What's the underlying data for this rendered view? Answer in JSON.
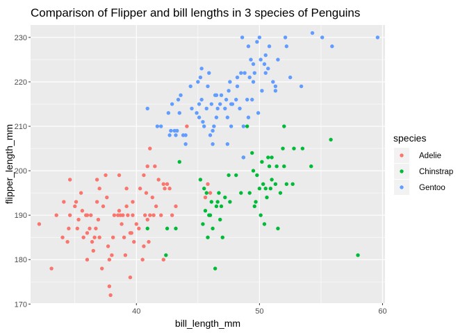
{
  "chart_data": {
    "type": "scatter",
    "title": "Comparison of Flipper and bill lengths in 3 species of Penguins",
    "xlabel": "bill_length_mm",
    "ylabel": "flipper_length_mm",
    "xlim": [
      31.4,
      60.2
    ],
    "ylim": [
      170.2,
      232.8
    ],
    "xticks": [
      40,
      50,
      60
    ],
    "yticks": [
      170,
      180,
      190,
      200,
      210,
      220,
      230
    ],
    "grid": true,
    "legend_title": "species",
    "legend_placement": "right",
    "series": [
      {
        "name": "Adelie",
        "color": "#F8766D",
        "points": [
          [
            32.1,
            188
          ],
          [
            33.1,
            178
          ],
          [
            33.5,
            190
          ],
          [
            34.0,
            185
          ],
          [
            34.1,
            193
          ],
          [
            34.4,
            184
          ],
          [
            34.5,
            187
          ],
          [
            34.6,
            190
          ],
          [
            34.6,
            198
          ],
          [
            35.0,
            192
          ],
          [
            35.1,
            193
          ],
          [
            35.2,
            187
          ],
          [
            35.3,
            189
          ],
          [
            35.5,
            195
          ],
          [
            35.6,
            191
          ],
          [
            35.7,
            185
          ],
          [
            35.9,
            190
          ],
          [
            36.0,
            180
          ],
          [
            36.0,
            186
          ],
          [
            36.0,
            190
          ],
          [
            36.2,
            187
          ],
          [
            36.3,
            190
          ],
          [
            36.4,
            184
          ],
          [
            36.5,
            182
          ],
          [
            36.6,
            185
          ],
          [
            36.7,
            187
          ],
          [
            36.8,
            193
          ],
          [
            36.9,
            189
          ],
          [
            37.0,
            185
          ],
          [
            37.2,
            178
          ],
          [
            37.3,
            192
          ],
          [
            37.5,
            199
          ],
          [
            37.6,
            194
          ],
          [
            37.7,
            183
          ],
          [
            37.8,
            174
          ],
          [
            37.8,
            180
          ],
          [
            37.9,
            172
          ],
          [
            38.0,
            181
          ],
          [
            38.1,
            185
          ],
          [
            38.2,
            190
          ],
          [
            38.5,
            190
          ],
          [
            38.6,
            191
          ],
          [
            38.7,
            190
          ],
          [
            38.8,
            188
          ],
          [
            38.9,
            190
          ],
          [
            39.0,
            185
          ],
          [
            39.1,
            181
          ],
          [
            39.2,
            196
          ],
          [
            39.3,
            190
          ],
          [
            39.5,
            186
          ],
          [
            39.6,
            186
          ],
          [
            39.7,
            193
          ],
          [
            39.8,
            184
          ],
          [
            40.0,
            188
          ],
          [
            40.2,
            187
          ],
          [
            40.3,
            196
          ],
          [
            40.5,
            180
          ],
          [
            40.6,
            183
          ],
          [
            40.7,
            190
          ],
          [
            40.8,
            195
          ],
          [
            40.9,
            189
          ],
          [
            41.0,
            184
          ],
          [
            41.1,
            190
          ],
          [
            41.3,
            194
          ],
          [
            41.4,
            190
          ],
          [
            41.5,
            201
          ],
          [
            41.6,
            192
          ],
          [
            41.8,
            198
          ],
          [
            42.0,
            190
          ],
          [
            42.2,
            180
          ],
          [
            42.3,
            196
          ],
          [
            42.5,
            197
          ],
          [
            42.7,
            196
          ],
          [
            42.9,
            190
          ],
          [
            43.2,
            192
          ],
          [
            44.1,
            210
          ],
          [
            45.6,
            194
          ],
          [
            45.8,
            197
          ],
          [
            46.0,
            195
          ],
          [
            39.5,
            176
          ],
          [
            38.6,
            199
          ],
          [
            37.0,
            196
          ],
          [
            36.8,
            198
          ],
          [
            41.1,
            205
          ],
          [
            40.9,
            201
          ],
          [
            42.2,
            197
          ],
          [
            39.7,
            190
          ],
          [
            40.6,
            199
          ],
          [
            39.2,
            192
          ]
        ]
      },
      {
        "name": "Chinstrap",
        "color": "#00BA38",
        "points": [
          [
            40.9,
            187
          ],
          [
            42.4,
            181
          ],
          [
            42.5,
            187
          ],
          [
            43.2,
            187
          ],
          [
            43.5,
            202
          ],
          [
            45.2,
            198
          ],
          [
            45.4,
            188
          ],
          [
            45.5,
            196
          ],
          [
            45.6,
            191
          ],
          [
            45.7,
            195
          ],
          [
            45.9,
            190
          ],
          [
            46.1,
            193
          ],
          [
            46.2,
            187
          ],
          [
            46.4,
            178
          ],
          [
            46.5,
            192
          ],
          [
            46.6,
            193
          ],
          [
            46.7,
            195
          ],
          [
            46.8,
            189
          ],
          [
            46.9,
            192
          ],
          [
            47.0,
            185
          ],
          [
            47.5,
            199
          ],
          [
            47.6,
            193
          ],
          [
            48.1,
            199
          ],
          [
            48.5,
            195
          ],
          [
            49.0,
            210
          ],
          [
            49.2,
            195
          ],
          [
            49.5,
            200
          ],
          [
            49.7,
            193
          ],
          [
            49.8,
            199
          ],
          [
            50.0,
            196
          ],
          [
            50.1,
            190
          ],
          [
            50.3,
            197
          ],
          [
            50.5,
            196
          ],
          [
            50.6,
            194
          ],
          [
            50.7,
            203
          ],
          [
            50.8,
            201
          ],
          [
            50.9,
            196
          ],
          [
            51.0,
            203
          ],
          [
            51.3,
            197
          ],
          [
            51.4,
            201
          ],
          [
            51.5,
            187
          ],
          [
            51.7,
            195
          ],
          [
            51.9,
            205
          ],
          [
            52.0,
            210
          ],
          [
            52.2,
            197
          ],
          [
            52.7,
            197
          ],
          [
            52.8,
            205
          ],
          [
            53.5,
            205
          ],
          [
            54.2,
            201
          ],
          [
            55.8,
            207
          ],
          [
            58.0,
            181
          ],
          [
            49.6,
            192
          ],
          [
            50.2,
            202
          ],
          [
            51.0,
            198
          ],
          [
            48.7,
            203
          ],
          [
            47.2,
            194
          ],
          [
            46.0,
            190
          ],
          [
            45.8,
            185
          ],
          [
            50.4,
            188
          ],
          [
            49.4,
            204
          ],
          [
            52.0,
            201
          ]
        ]
      },
      {
        "name": "Gentoo",
        "color": "#619CFF",
        "points": [
          [
            40.9,
            214
          ],
          [
            41.7,
            210
          ],
          [
            42.0,
            210
          ],
          [
            42.6,
            213
          ],
          [
            42.7,
            208
          ],
          [
            42.8,
            209
          ],
          [
            42.9,
            215
          ],
          [
            43.2,
            208
          ],
          [
            43.3,
            209
          ],
          [
            43.4,
            216
          ],
          [
            43.5,
            213
          ],
          [
            43.6,
            217
          ],
          [
            43.8,
            208
          ],
          [
            44.0,
            208
          ],
          [
            44.4,
            219
          ],
          [
            44.5,
            214
          ],
          [
            44.9,
            213
          ],
          [
            45.0,
            220
          ],
          [
            45.1,
            215
          ],
          [
            45.2,
            221
          ],
          [
            45.3,
            223
          ],
          [
            45.4,
            211
          ],
          [
            45.5,
            210
          ],
          [
            45.7,
            214
          ],
          [
            45.8,
            219
          ],
          [
            46.1,
            215
          ],
          [
            46.2,
            209
          ],
          [
            46.3,
            210
          ],
          [
            46.4,
            217
          ],
          [
            46.5,
            212
          ],
          [
            46.6,
            214
          ],
          [
            46.8,
            215
          ],
          [
            46.9,
            217
          ],
          [
            47.2,
            214
          ],
          [
            47.3,
            216
          ],
          [
            47.4,
            212
          ],
          [
            47.5,
            218
          ],
          [
            47.6,
            220
          ],
          [
            47.7,
            215
          ],
          [
            47.8,
            215
          ],
          [
            48.1,
            216
          ],
          [
            48.2,
            221
          ],
          [
            48.4,
            214
          ],
          [
            48.5,
            222
          ],
          [
            48.6,
            230
          ],
          [
            48.7,
            210
          ],
          [
            48.8,
            222
          ],
          [
            49.0,
            216
          ],
          [
            49.1,
            228
          ],
          [
            49.2,
            221
          ],
          [
            49.3,
            225
          ],
          [
            49.4,
            216
          ],
          [
            49.5,
            224
          ],
          [
            49.6,
            222
          ],
          [
            49.8,
            229
          ],
          [
            49.9,
            213
          ],
          [
            50.0,
            230
          ],
          [
            50.1,
            225
          ],
          [
            50.2,
            218
          ],
          [
            50.4,
            224
          ],
          [
            50.5,
            222
          ],
          [
            50.7,
            223
          ],
          [
            50.8,
            228
          ],
          [
            51.1,
            220
          ],
          [
            51.3,
            218
          ],
          [
            51.5,
            225
          ],
          [
            52.1,
            230
          ],
          [
            52.2,
            228
          ],
          [
            52.5,
            221
          ],
          [
            53.4,
            219
          ],
          [
            54.3,
            231
          ],
          [
            55.1,
            230
          ],
          [
            55.9,
            228
          ],
          [
            59.6,
            230
          ],
          [
            45.1,
            212
          ],
          [
            46.2,
            206
          ],
          [
            48.7,
            203
          ],
          [
            49.1,
            212
          ],
          [
            47.4,
            206
          ],
          [
            44.0,
            206
          ],
          [
            43.1,
            209
          ],
          [
            45.9,
            222
          ],
          [
            46.0,
            208
          ],
          [
            47.7,
            210
          ],
          [
            50.5,
            226
          ],
          [
            49.5,
            220
          ],
          [
            51.3,
            219
          ],
          [
            48.2,
            219
          ],
          [
            46.5,
            217
          ],
          [
            45.3,
            216
          ]
        ]
      }
    ]
  }
}
